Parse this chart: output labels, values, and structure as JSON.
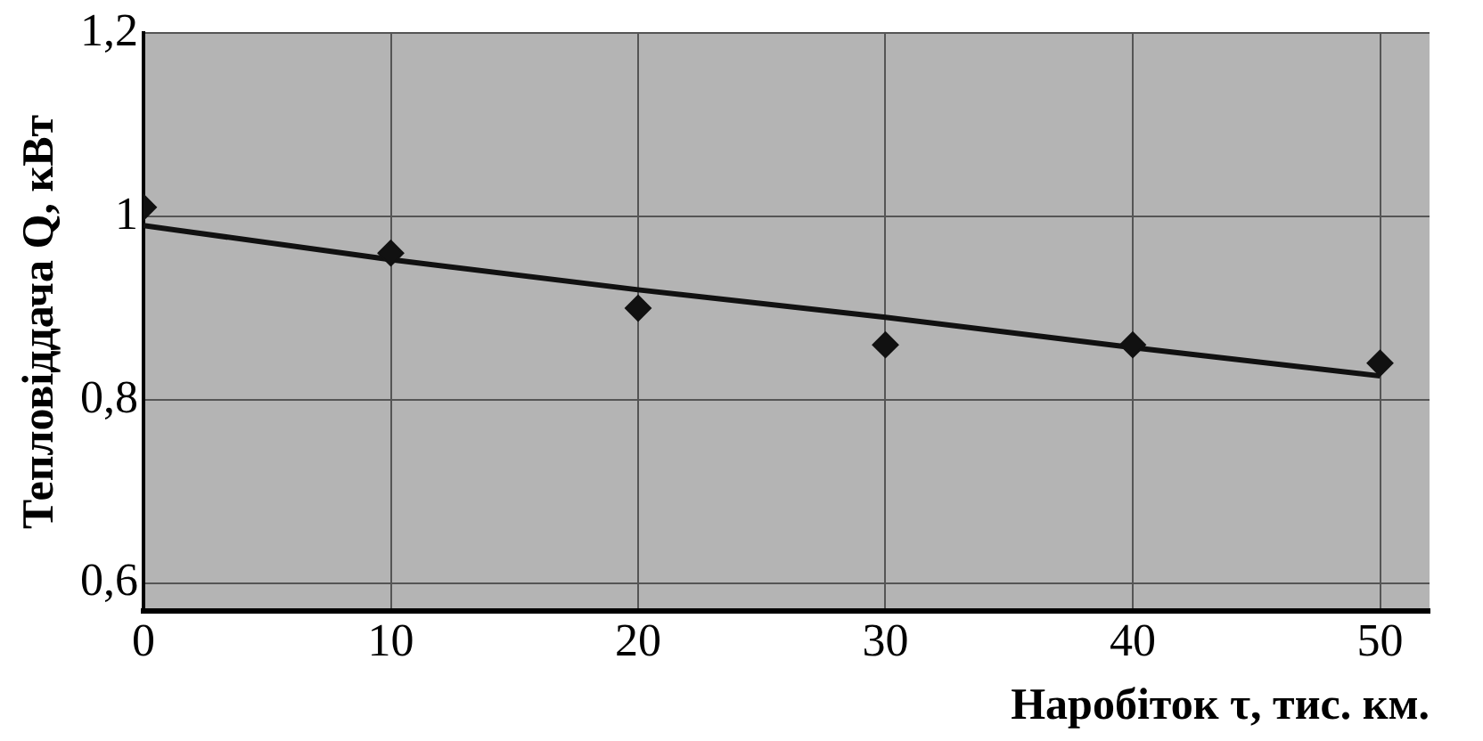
{
  "chart_data": {
    "type": "scatter",
    "xlabel": "Наробіток τ, тис. км.",
    "ylabel": "Тепловіддача Q, кВт",
    "x": [
      0,
      10,
      20,
      30,
      40,
      50
    ],
    "series": [
      {
        "color": "#111111",
        "marker": "diamond",
        "values": [
          1.01,
          0.96,
          0.9,
          0.86,
          0.86,
          0.84
        ]
      },
      {
        "type": "line",
        "color": "#111111",
        "marker": "none",
        "x": [
          0,
          10,
          20,
          30,
          40,
          50
        ],
        "values": [
          0.99,
          0.953,
          0.92,
          0.89,
          0.857,
          0.826
        ]
      }
    ],
    "xlim": [
      0,
      52
    ],
    "xticks": [
      0,
      10,
      20,
      30,
      40,
      50
    ],
    "ylim": [
      0.57,
      1.2
    ],
    "yticks": [
      {
        "value": 0.6,
        "label": "0,6"
      },
      {
        "value": 0.8,
        "label": "0,8"
      },
      {
        "value": 1,
        "label": "1"
      },
      {
        "value": 1.2,
        "label": "1,2"
      }
    ],
    "grid": true,
    "legend": false
  }
}
